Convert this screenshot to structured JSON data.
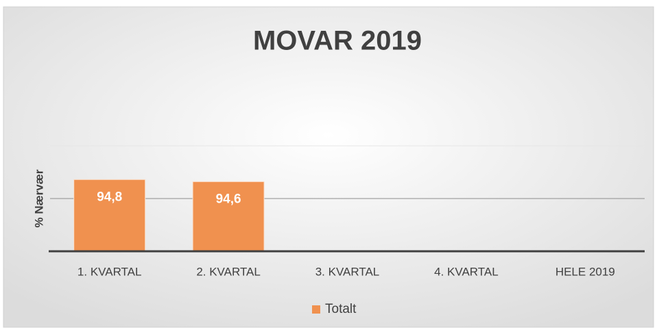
{
  "chart_data": {
    "type": "bar",
    "title": "MOVAR 2019",
    "y_label": "% Nærvær",
    "categories": [
      "1. KVARTAL",
      "2. KVARTAL",
      "3. KVARTAL",
      "4. KVARTAL",
      "HELE 2019"
    ],
    "series": [
      {
        "name": "Totalt",
        "color": "#f0914f",
        "values": [
          94.8,
          94.6,
          null,
          null,
          null
        ],
        "value_labels": [
          "94,8",
          "94,6",
          null,
          null,
          null
        ]
      }
    ],
    "ylim": [
      88,
      98
    ],
    "yticks": [
      88,
      93,
      98
    ],
    "grid": true,
    "legend": "bottom"
  }
}
